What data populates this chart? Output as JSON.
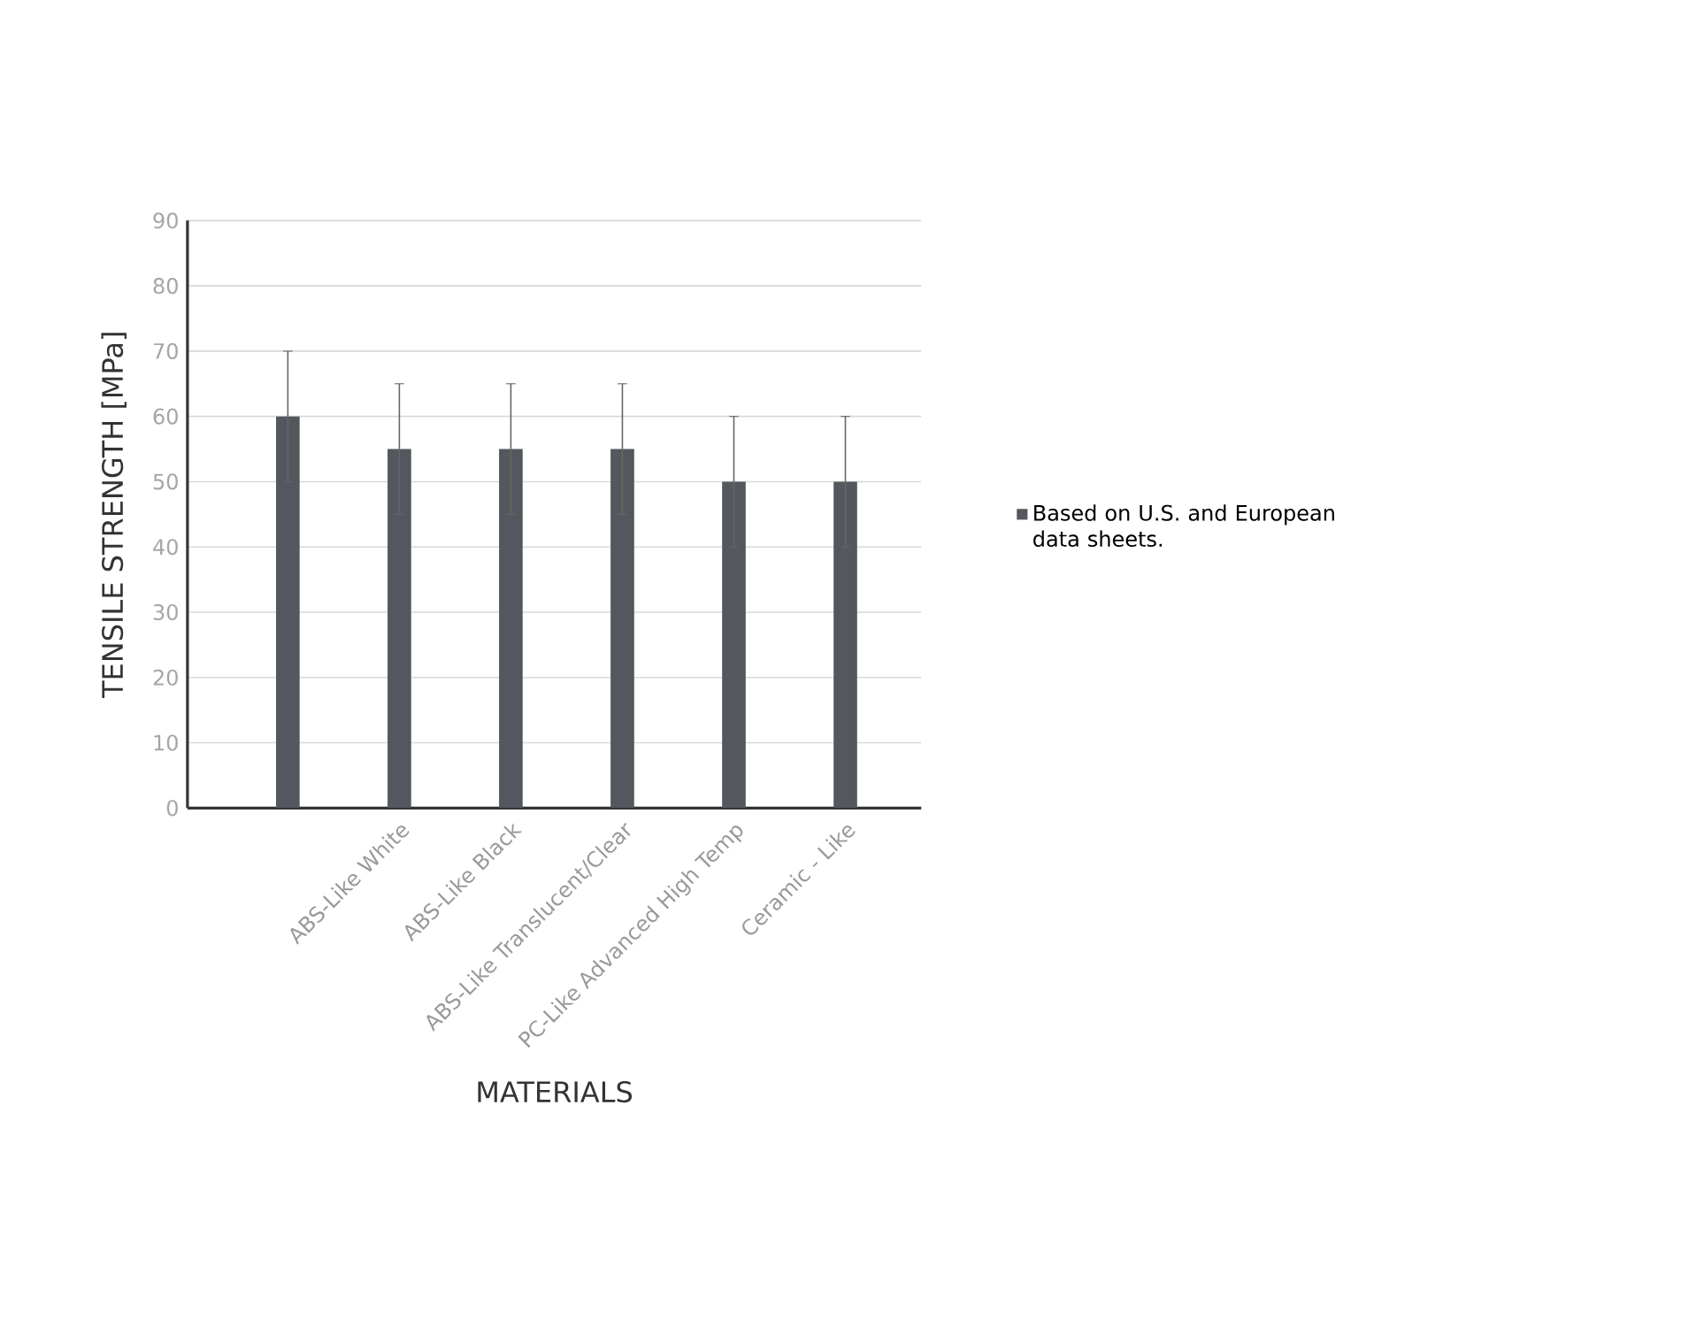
{
  "chart_data": {
    "type": "bar",
    "xlabel": "MATERIALS",
    "ylabel": "TENSILE STRENGTH [MPa]",
    "categories": [
      null,
      "ABS-Like White",
      "ABS-Like Black",
      "ABS-Like Translucent/Clear",
      "PC-Like Advanced High Temp",
      "Ceramic - Like"
    ],
    "series": [
      {
        "name": "Based on U.S. and European data sheets.",
        "color": "#55575f",
        "values": [
          60,
          55,
          55,
          55,
          50,
          50
        ],
        "errors": [
          10,
          10,
          10,
          10,
          10,
          10
        ]
      }
    ],
    "ylim": [
      0,
      90
    ],
    "yticks": [
      0,
      10,
      20,
      30,
      40,
      50,
      60,
      70,
      80,
      90
    ],
    "grid": "y",
    "legend": "right"
  }
}
